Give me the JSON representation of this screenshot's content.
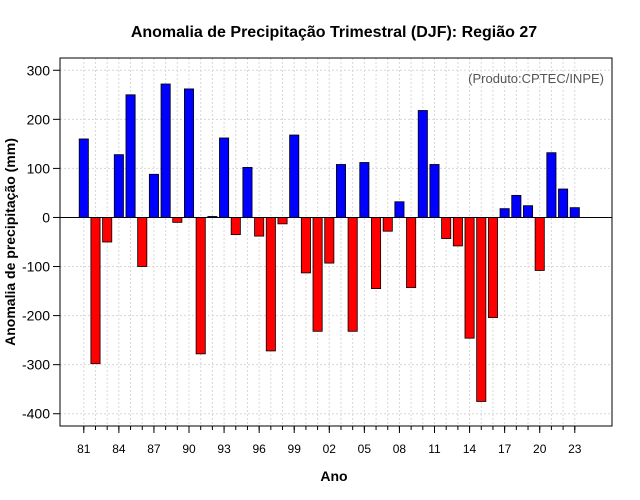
{
  "chart_data": {
    "type": "bar",
    "title": "Anomalia de Precipitação Trimestral (DJF): Região 27",
    "xlabel": "Ano",
    "ylabel": "Anomalia de precipitação (mm)",
    "annotation": "(Produto:CPTEC/INPE)",
    "ylim": [
      -425,
      325
    ],
    "yticks": [
      -400,
      -300,
      -200,
      -100,
      0,
      100,
      200,
      300
    ],
    "xtick_labels": [
      "81",
      "84",
      "87",
      "90",
      "93",
      "96",
      "99",
      "02",
      "05",
      "08",
      "11",
      "14",
      "17",
      "20",
      "23"
    ],
    "grid": true,
    "positive_color": "#0000ff",
    "negative_color": "#ff0000",
    "categories": [
      "81",
      "82",
      "83",
      "84",
      "85",
      "86",
      "87",
      "88",
      "89",
      "90",
      "91",
      "92",
      "93",
      "94",
      "95",
      "96",
      "97",
      "98",
      "99",
      "00",
      "01",
      "02",
      "03",
      "04",
      "05",
      "06",
      "07",
      "08",
      "09",
      "10",
      "11",
      "12",
      "13",
      "14",
      "15",
      "16",
      "17",
      "18",
      "19",
      "20",
      "21",
      "22",
      "23"
    ],
    "values": [
      160,
      -298,
      -50,
      128,
      250,
      -100,
      88,
      272,
      -10,
      262,
      -278,
      2,
      162,
      -35,
      102,
      -38,
      -272,
      -13,
      168,
      -113,
      -232,
      -93,
      108,
      -232,
      112,
      -145,
      -28,
      32,
      -143,
      218,
      108,
      -43,
      -58,
      -246,
      -375,
      -204,
      18,
      45,
      24,
      -108,
      132,
      58,
      20
    ]
  }
}
